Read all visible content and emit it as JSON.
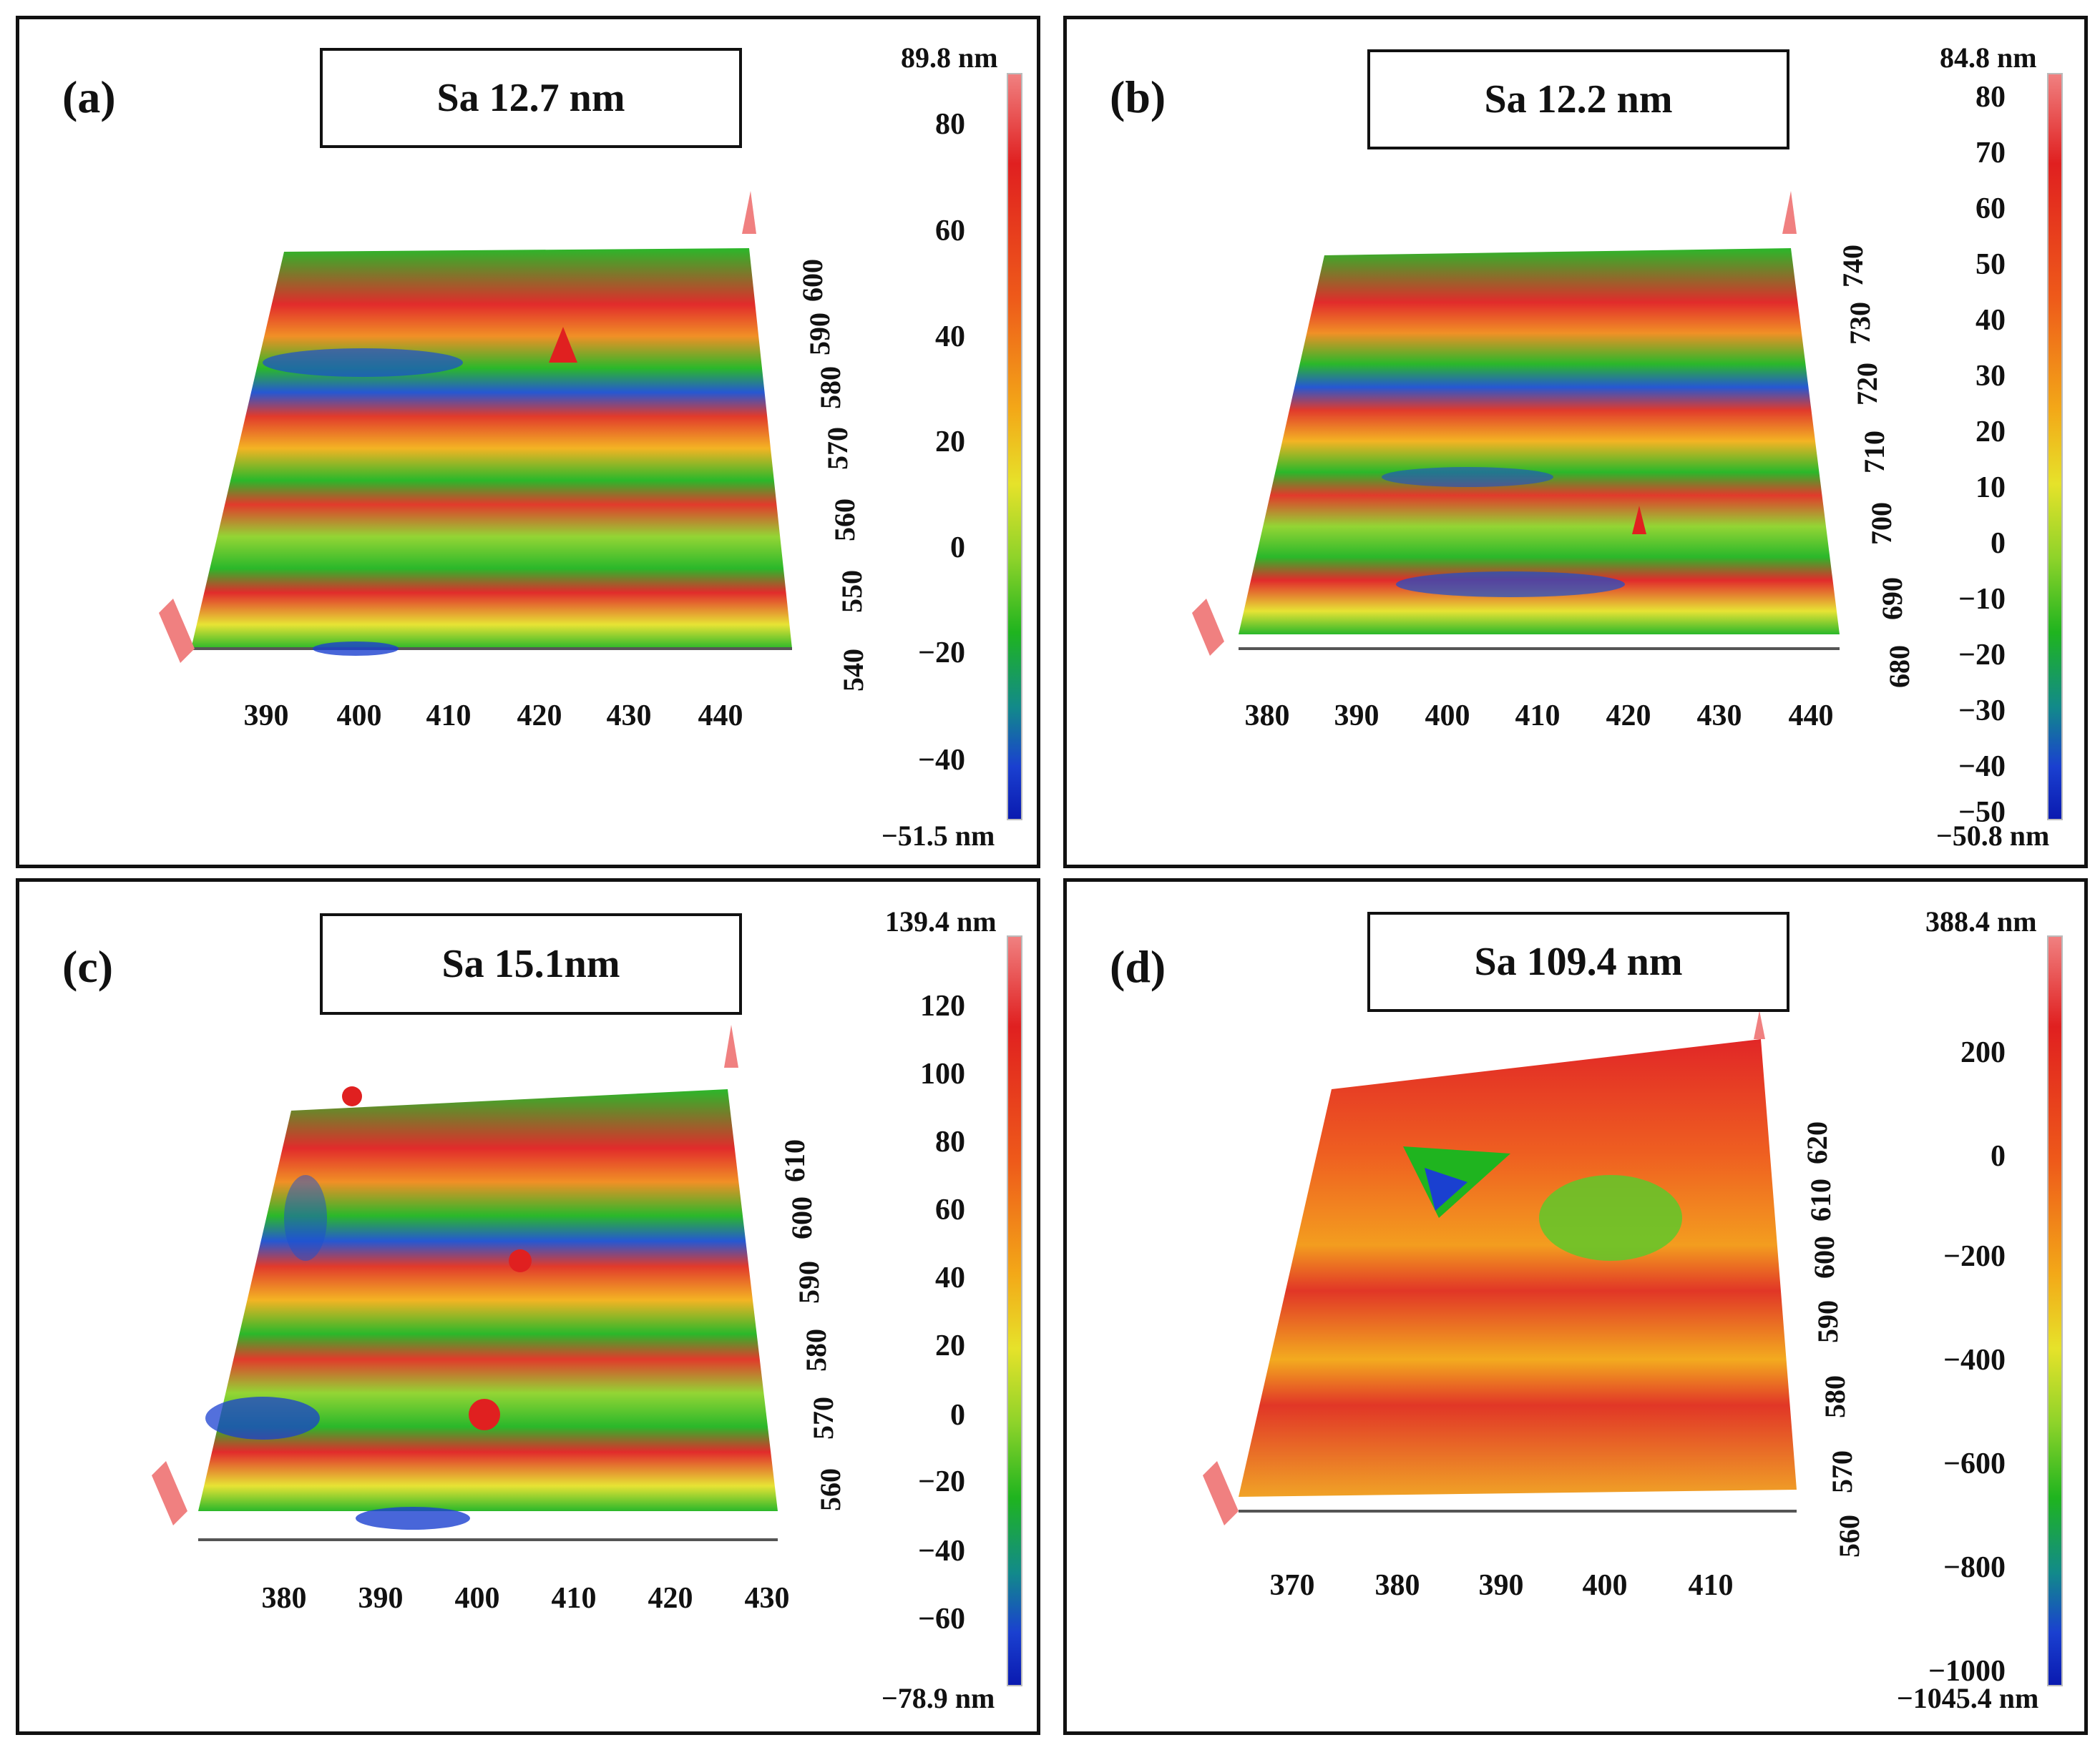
{
  "panels": [
    {
      "label": "(a)",
      "sa": "Sa 12.7 nm",
      "range_max": "89.8 nm",
      "range_min": "−51.5 nm",
      "colorbar_ticks": [
        "80",
        "60",
        "40",
        "20",
        "0",
        "−20",
        "−40"
      ],
      "x_ticks": [
        "390",
        "400",
        "410",
        "420",
        "430",
        "440"
      ],
      "y_ticks": [
        "540",
        "550",
        "560",
        "570",
        "580",
        "590",
        "600"
      ]
    },
    {
      "label": "(b)",
      "sa": "Sa 12.2 nm",
      "range_max": "84.8 nm",
      "range_min": "−50.8 nm",
      "colorbar_ticks": [
        "80",
        "70",
        "60",
        "50",
        "40",
        "30",
        "20",
        "10",
        "0",
        "−10",
        "−20",
        "−30",
        "−40",
        "−50"
      ],
      "x_ticks": [
        "380",
        "390",
        "400",
        "410",
        "420",
        "430",
        "440"
      ],
      "y_ticks": [
        "680",
        "690",
        "700",
        "710",
        "720",
        "730",
        "740"
      ]
    },
    {
      "label": "(c)",
      "sa": "Sa 15.1nm",
      "range_max": "139.4 nm",
      "range_min": "−78.9 nm",
      "colorbar_ticks": [
        "120",
        "100",
        "80",
        "60",
        "40",
        "20",
        "0",
        "−20",
        "−40",
        "−60"
      ],
      "x_ticks": [
        "380",
        "390",
        "400",
        "410",
        "420",
        "430"
      ],
      "y_ticks": [
        "560",
        "570",
        "580",
        "590",
        "600",
        "610"
      ]
    },
    {
      "label": "(d)",
      "sa": "Sa 109.4 nm",
      "range_max": "388.4 nm",
      "range_min": "−1045.4 nm",
      "colorbar_ticks": [
        "200",
        "0",
        "−200",
        "−400",
        "−600",
        "−800",
        "−1000"
      ],
      "x_ticks": [
        "370",
        "380",
        "390",
        "400",
        "410"
      ],
      "y_ticks": [
        "560",
        "570",
        "580",
        "590",
        "600",
        "610",
        "620"
      ]
    }
  ]
}
